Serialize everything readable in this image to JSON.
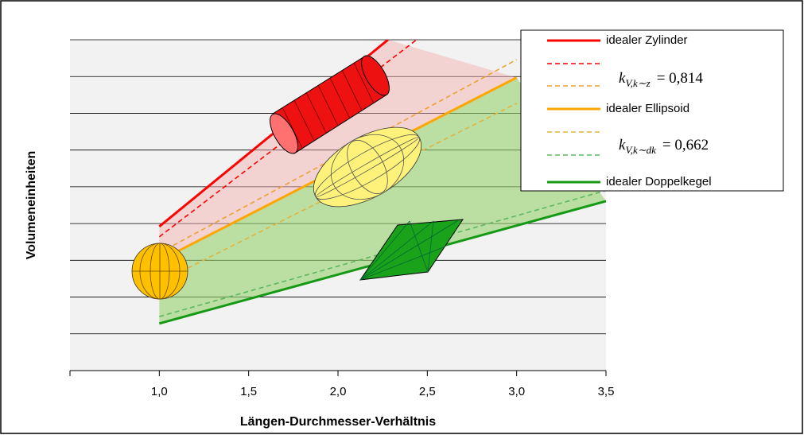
{
  "chart_data": {
    "type": "line",
    "x_label": "Längen-Durchmesser-Verhältnis",
    "y_label": "Volumeneinheiten",
    "xlim": [
      0.5,
      3.5
    ],
    "xticks": [
      {
        "value": 1,
        "label": "1,0"
      },
      {
        "value": 1.5,
        "label": "1,5"
      },
      {
        "value": 2,
        "label": "2,0"
      },
      {
        "value": 2.5,
        "label": "2,5"
      },
      {
        "value": 3,
        "label": "3,0"
      },
      {
        "value": 3.5,
        "label": "3,5"
      }
    ],
    "ylim": [
      0,
      9
    ],
    "yticks": [
      1,
      2,
      3,
      4,
      5,
      6,
      7,
      8,
      9
    ],
    "grid": true,
    "legend": "top-right",
    "series": [
      {
        "name": "idealer Zylinder",
        "color": "#ff0000",
        "dashed": false,
        "x": [
          1,
          2.28
        ],
        "values": [
          3.92,
          9
        ]
      },
      {
        "color": "#ff0000",
        "dashed": true,
        "x": [
          1,
          2.44
        ],
        "values": [
          3.64,
          9
        ]
      },
      {
        "color": "#f0a030",
        "dashed": true,
        "x": [
          1,
          3
        ],
        "values": [
          3.2,
          8.46
        ]
      },
      {
        "name": "idealer Ellipsoid",
        "color": "#ffa500",
        "dashed": false,
        "x": [
          1,
          3
        ],
        "values": [
          2.99,
          7.97
        ]
      },
      {
        "color": "#e0b43c",
        "dashed": true,
        "x": [
          1,
          3
        ],
        "values": [
          2.4,
          7.27
        ]
      },
      {
        "color": "#5cb85c",
        "dashed": true,
        "x": [
          1,
          3.5
        ],
        "values": [
          1.47,
          4.9
        ]
      },
      {
        "name": "idealer Doppelkegel",
        "color": "#169a16",
        "dashed": false,
        "x": [
          1,
          3.5
        ],
        "values": [
          1.28,
          4.61
        ]
      }
    ],
    "legend_notes": [
      {
        "symbol": "k",
        "subscript": "V,k∼z",
        "text": "= 0,814"
      },
      {
        "symbol": "k",
        "subscript": "V,k∼dk",
        "text": "= 0,662"
      }
    ]
  }
}
